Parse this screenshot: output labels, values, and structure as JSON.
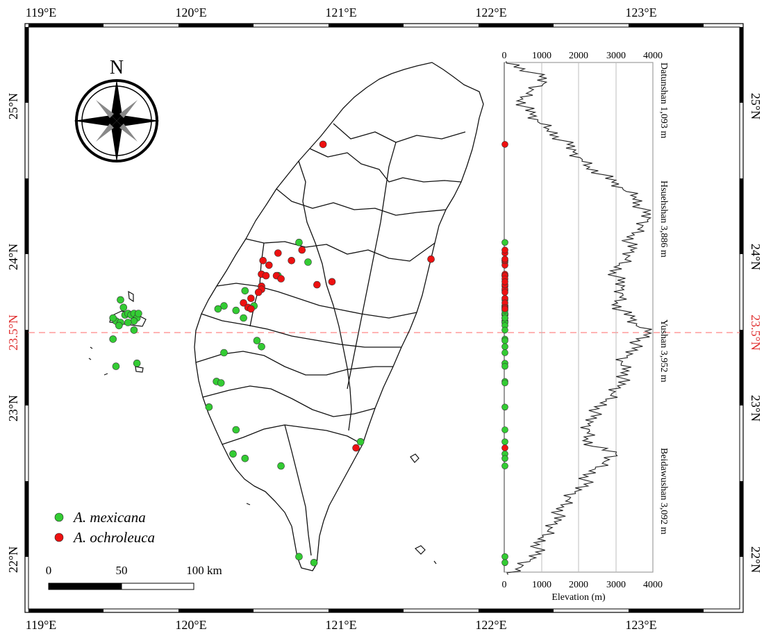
{
  "longitude_labels": [
    "119°E",
    "120°E",
    "121°E",
    "122°E",
    "123°E"
  ],
  "latitude_labels": [
    "22°N",
    "23°N",
    "23.5°N",
    "24°N",
    "25°N"
  ],
  "compass": {
    "label": "N"
  },
  "scale_bar": {
    "ticks": [
      "0",
      "50",
      "100 km"
    ]
  },
  "legend": [
    {
      "name": "A. mexicana",
      "color": "#33cc33"
    },
    {
      "name": "A. ochroleuca",
      "color": "#ee1111"
    }
  ],
  "colors": {
    "mexicana": "#33cc33",
    "ochroleuca": "#ee1111",
    "tropic_line": "#ff8c8c",
    "grid": "#bdbdbd"
  },
  "elevation_panel": {
    "top_ticks": [
      "0",
      "1000",
      "2000",
      "3000",
      "4000"
    ],
    "bottom_ticks": [
      "0",
      "1000",
      "2000",
      "3000",
      "4000"
    ],
    "xlabel": "Elevation (m)",
    "peaks": [
      "Datunshan 1,093 m",
      "Hsuehshan 3,886 m",
      "Yushan 3,952 m",
      "Beidawushan 3,092 m"
    ]
  },
  "chart_data": {
    "type": "scatter",
    "title": "",
    "x_axis": "longitude (°E)",
    "y_axis": "latitude (°N)",
    "xlim": [
      118.9,
      123.6
    ],
    "ylim": [
      21.8,
      25.8
    ],
    "series": [
      {
        "name": "A. mexicana",
        "points": [
          [
            119.53,
            23.72
          ],
          [
            119.55,
            23.67
          ],
          [
            119.56,
            23.62
          ],
          [
            119.58,
            23.63
          ],
          [
            119.6,
            23.62
          ],
          [
            119.62,
            23.63
          ],
          [
            119.64,
            23.6
          ],
          [
            119.62,
            23.58
          ],
          [
            119.5,
            23.58
          ],
          [
            119.48,
            23.6
          ],
          [
            119.53,
            23.57
          ],
          [
            119.58,
            23.57
          ],
          [
            119.65,
            23.63
          ],
          [
            119.52,
            23.55
          ],
          [
            119.48,
            23.46
          ],
          [
            119.62,
            23.52
          ],
          [
            119.64,
            23.3
          ],
          [
            119.5,
            23.28
          ],
          [
            120.72,
            24.1
          ],
          [
            120.78,
            23.97
          ],
          [
            120.58,
            23.88
          ],
          [
            120.36,
            23.78
          ],
          [
            120.42,
            23.68
          ],
          [
            120.22,
            23.68
          ],
          [
            120.18,
            23.66
          ],
          [
            120.3,
            23.65
          ],
          [
            120.35,
            23.6
          ],
          [
            120.44,
            23.45
          ],
          [
            120.47,
            23.41
          ],
          [
            120.22,
            23.37
          ],
          [
            120.17,
            23.18
          ],
          [
            120.2,
            23.17
          ],
          [
            120.12,
            23.01
          ],
          [
            120.3,
            22.86
          ],
          [
            120.28,
            22.7
          ],
          [
            120.36,
            22.67
          ],
          [
            120.6,
            22.62
          ],
          [
            120.72,
            22.02
          ],
          [
            120.82,
            21.98
          ],
          [
            121.13,
            22.78
          ]
        ]
      },
      {
        "name": "A. ochroleuca",
        "points": [
          [
            120.88,
            24.75
          ],
          [
            120.58,
            24.03
          ],
          [
            120.74,
            24.05
          ],
          [
            120.48,
            23.98
          ],
          [
            120.52,
            23.95
          ],
          [
            120.67,
            23.98
          ],
          [
            120.47,
            23.89
          ],
          [
            120.5,
            23.88
          ],
          [
            120.57,
            23.88
          ],
          [
            120.6,
            23.86
          ],
          [
            120.47,
            23.81
          ],
          [
            120.47,
            23.79
          ],
          [
            120.45,
            23.77
          ],
          [
            120.4,
            23.73
          ],
          [
            120.35,
            23.7
          ],
          [
            120.38,
            23.67
          ],
          [
            120.4,
            23.66
          ],
          [
            120.84,
            23.82
          ],
          [
            120.94,
            23.84
          ],
          [
            121.6,
            23.99
          ],
          [
            121.1,
            22.74
          ]
        ]
      }
    ],
    "elevation_profile": {
      "x": "elevation (m)",
      "y": "latitude (°N)",
      "xlim": [
        0,
        4000
      ],
      "peaks": [
        {
          "name": "Datunshan",
          "elevation": 1093
        },
        {
          "name": "Hsuehshan",
          "elevation": 3886
        },
        {
          "name": "Yushan",
          "elevation": 3952
        },
        {
          "name": "Beidawushan",
          "elevation": 3092
        }
      ],
      "points": [
        [
          25.3,
          50
        ],
        [
          25.25,
          550
        ],
        [
          25.2,
          950
        ],
        [
          25.15,
          1050
        ],
        [
          25.1,
          700
        ],
        [
          25.05,
          500
        ],
        [
          25.0,
          550
        ],
        [
          24.95,
          700
        ],
        [
          24.9,
          900
        ],
        [
          24.85,
          1200
        ],
        [
          24.8,
          1450
        ],
        [
          24.75,
          1700
        ],
        [
          24.7,
          1850
        ],
        [
          24.65,
          2100
        ],
        [
          24.6,
          2300
        ],
        [
          24.55,
          2650
        ],
        [
          24.5,
          2900
        ],
        [
          24.45,
          3200
        ],
        [
          24.4,
          3550
        ],
        [
          24.35,
          3650
        ],
        [
          24.3,
          3750
        ],
        [
          24.25,
          3850
        ],
        [
          24.2,
          3700
        ],
        [
          24.15,
          3500
        ],
        [
          24.1,
          3350
        ],
        [
          24.05,
          3400
        ],
        [
          24.0,
          3300
        ],
        [
          23.95,
          3100
        ],
        [
          23.9,
          3000
        ],
        [
          23.85,
          3050
        ],
        [
          23.8,
          3150
        ],
        [
          23.75,
          3200
        ],
        [
          23.7,
          3050
        ],
        [
          23.65,
          3150
        ],
        [
          23.6,
          3400
        ],
        [
          23.55,
          3550
        ],
        [
          23.5,
          3950
        ],
        [
          23.45,
          3650
        ],
        [
          23.4,
          3450
        ],
        [
          23.35,
          3300
        ],
        [
          23.3,
          3150
        ],
        [
          23.25,
          3350
        ],
        [
          23.2,
          3200
        ],
        [
          23.15,
          3050
        ],
        [
          23.1,
          2900
        ],
        [
          23.05,
          2750
        ],
        [
          23.0,
          2550
        ],
        [
          22.95,
          2350
        ],
        [
          22.9,
          2250
        ],
        [
          22.85,
          2300
        ],
        [
          22.8,
          2250
        ],
        [
          22.75,
          2400
        ],
        [
          22.7,
          3000
        ],
        [
          22.65,
          2700
        ],
        [
          22.6,
          2450
        ],
        [
          22.55,
          2250
        ],
        [
          22.5,
          2150
        ],
        [
          22.45,
          1900
        ],
        [
          22.4,
          1750
        ],
        [
          22.35,
          1600
        ],
        [
          22.3,
          1450
        ],
        [
          22.25,
          1350
        ],
        [
          22.2,
          1200
        ],
        [
          22.15,
          1050
        ],
        [
          22.1,
          950
        ],
        [
          22.05,
          850
        ],
        [
          22.0,
          700
        ],
        [
          21.95,
          450
        ],
        [
          21.9,
          100
        ]
      ]
    }
  }
}
